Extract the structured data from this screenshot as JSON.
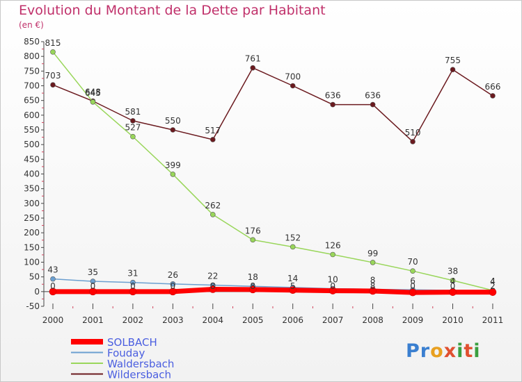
{
  "chart_data": {
    "type": "line",
    "title": "Evolution du Montant de la Dette par Habitant",
    "subtitle": "(en €)",
    "xlabel": "",
    "ylabel": "",
    "categories": [
      "2000",
      "2001",
      "2002",
      "2003",
      "2004",
      "2005",
      "2006",
      "2007",
      "2008",
      "2009",
      "2010",
      "2011"
    ],
    "yticks": [
      -50,
      0,
      50,
      100,
      150,
      200,
      250,
      300,
      350,
      400,
      450,
      500,
      550,
      600,
      650,
      700,
      750,
      800,
      850
    ],
    "ylim": [
      -50,
      850
    ],
    "grid": false,
    "legend_position": "bottom-left",
    "series": [
      {
        "name": "SOLBACH",
        "color": "#ff0000",
        "labels": false,
        "values": [
          0,
          0,
          0,
          0,
          8,
          7,
          5,
          3,
          2,
          -3,
          -2,
          -2
        ]
      },
      {
        "name": "Fouday",
        "color": "#6b9fd0",
        "labels": true,
        "values": [
          43,
          35,
          31,
          26,
          22,
          18,
          14,
          10,
          8,
          6,
          4,
          4
        ],
        "label_text": [
          "43",
          "35",
          "31",
          "26",
          "22",
          "18",
          "14",
          "10",
          "8",
          "6",
          "4",
          "4"
        ]
      },
      {
        "name": "Waldersbach",
        "color": "#99d65a",
        "labels": true,
        "values": [
          815,
          645,
          527,
          399,
          262,
          176,
          152,
          126,
          99,
          70,
          38,
          4
        ],
        "label_text": [
          "815",
          "645",
          "527",
          "399",
          "262",
          "176",
          "152",
          "126",
          "99",
          "70",
          "38",
          "4"
        ]
      },
      {
        "name": "Wildersbach",
        "color": "#6b1a1f",
        "labels": true,
        "values": [
          703,
          648,
          581,
          550,
          517,
          761,
          700,
          636,
          636,
          510,
          755,
          666
        ],
        "label_text": [
          "703",
          "648",
          "581",
          "550",
          "517",
          "761",
          "700",
          "636",
          "636",
          "510",
          "755",
          "666"
        ]
      }
    ],
    "extra_labels": [
      "0",
      "0",
      "0",
      "0",
      "8",
      "8",
      "5",
      "0",
      "8",
      "0",
      "0",
      "2"
    ]
  },
  "logo": {
    "text": "Proxiti"
  }
}
